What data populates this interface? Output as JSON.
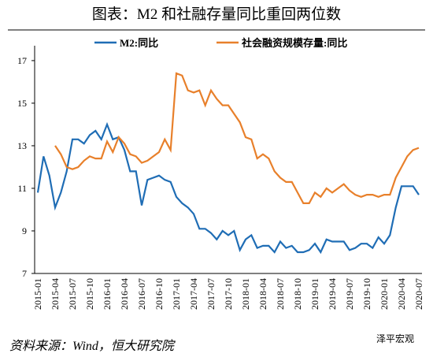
{
  "chart_data": {
    "type": "line",
    "title": "图表：M2 和社融存量同比重回两位数",
    "source": "资料来源：Wind，恒大研究院",
    "watermark": "泽平宏观",
    "categories": [
      "2015-01",
      null,
      null,
      "2015-04",
      null,
      null,
      "2015-07",
      null,
      null,
      "2015-10",
      null,
      null,
      "2016-01",
      null,
      null,
      "2016-04",
      null,
      null,
      "2016-07",
      null,
      null,
      "2016-10",
      null,
      null,
      "2017-01",
      null,
      null,
      "2017-04",
      null,
      null,
      "2017-07",
      null,
      null,
      "2017-10",
      null,
      null,
      "2018-01",
      null,
      null,
      "2018-04",
      null,
      null,
      "2018-07",
      null,
      null,
      "2018-10",
      null,
      null,
      "2019-01",
      null,
      null,
      "2019-04",
      null,
      null,
      "2019-07",
      null,
      null,
      "2019-10",
      null,
      null,
      "2020-01",
      null,
      null,
      "2020-04",
      null,
      null,
      "2020-07"
    ],
    "series": [
      {
        "name": "M2:同比",
        "color": "#1f6db5",
        "values": [
          10.8,
          12.5,
          11.6,
          10.1,
          10.8,
          11.8,
          13.3,
          13.3,
          13.1,
          13.5,
          13.7,
          13.3,
          14.0,
          13.3,
          13.4,
          12.8,
          11.8,
          11.8,
          10.2,
          11.4,
          11.5,
          11.6,
          11.4,
          11.3,
          10.6,
          10.3,
          10.1,
          9.8,
          9.1,
          9.1,
          8.9,
          8.6,
          9.0,
          8.8,
          9.0,
          8.1,
          8.6,
          8.8,
          8.2,
          8.3,
          8.3,
          8.0,
          8.5,
          8.2,
          8.3,
          8.0,
          8.0,
          8.1,
          8.4,
          8.0,
          8.6,
          8.5,
          8.5,
          8.5,
          8.1,
          8.2,
          8.4,
          8.4,
          8.2,
          8.7,
          8.4,
          8.8,
          10.1,
          11.1,
          11.1,
          11.1,
          10.7
        ]
      },
      {
        "name": "社会融资规模存量:同比",
        "color": "#e8802b",
        "values": [
          null,
          null,
          null,
          13.0,
          12.6,
          12.0,
          11.9,
          12.0,
          12.3,
          12.5,
          12.4,
          12.4,
          13.2,
          12.7,
          13.4,
          13.1,
          12.6,
          12.5,
          12.2,
          12.3,
          12.5,
          12.7,
          13.3,
          12.8,
          16.4,
          16.3,
          15.6,
          15.5,
          15.6,
          14.9,
          15.6,
          15.2,
          14.9,
          14.9,
          14.5,
          14.1,
          13.4,
          13.3,
          12.4,
          12.6,
          12.4,
          11.8,
          11.5,
          11.3,
          11.3,
          10.8,
          10.3,
          10.3,
          10.8,
          10.6,
          11.0,
          10.8,
          11.0,
          11.2,
          10.9,
          10.7,
          10.6,
          10.7,
          10.7,
          10.6,
          10.7,
          10.7,
          11.5,
          12.0,
          12.5,
          12.8,
          12.9
        ]
      }
    ],
    "ylim": [
      7,
      17.7
    ],
    "yticks": [
      7,
      9,
      11,
      13,
      15,
      17
    ],
    "legend": "top"
  }
}
